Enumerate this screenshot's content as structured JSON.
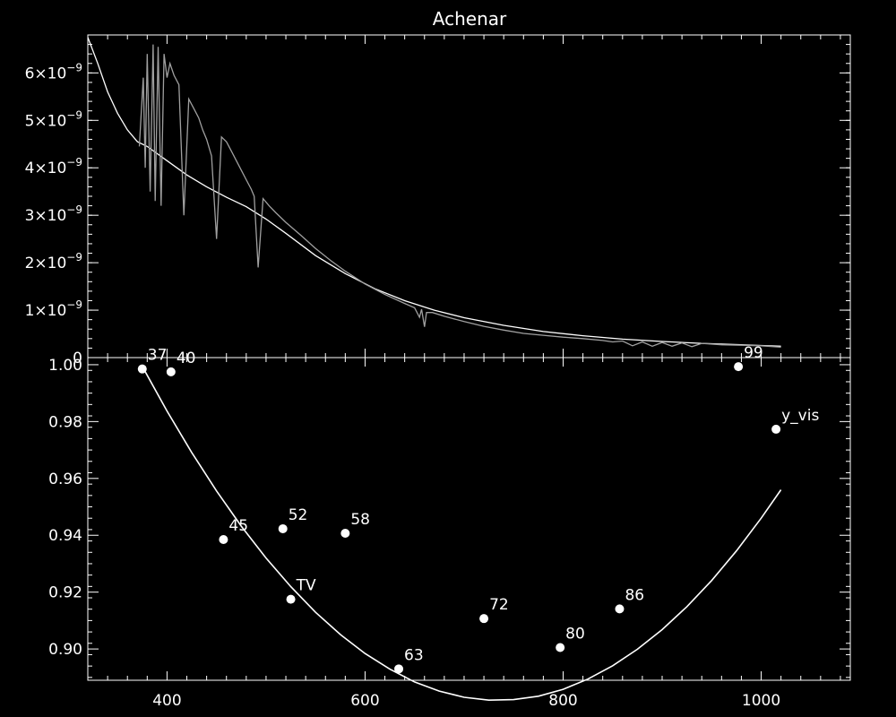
{
  "chart_data": [
    {
      "type": "line",
      "title": "Achenar",
      "xlabel": "",
      "ylabel": "",
      "xlim": [
        320,
        1090
      ],
      "ylim": [
        0,
        6.8e-09
      ],
      "y_tick_values": [
        0,
        1e-09,
        2e-09,
        3e-09,
        4e-09,
        5e-09,
        6e-09
      ],
      "y_tick_labels": [
        {
          "mant": "0",
          "exp": ""
        },
        {
          "mant": "1×10",
          "exp": "−9"
        },
        {
          "mant": "2×10",
          "exp": "−9"
        },
        {
          "mant": "3×10",
          "exp": "−9"
        },
        {
          "mant": "4×10",
          "exp": "−9"
        },
        {
          "mant": "5×10",
          "exp": "−9"
        },
        {
          "mant": "6×10",
          "exp": "−9"
        }
      ],
      "series": [
        {
          "color": "#ffffff",
          "x": [
            320,
            330,
            340,
            350,
            360,
            370,
            380,
            400,
            420,
            440,
            460,
            480,
            500,
            520,
            550,
            580,
            610,
            640,
            670,
            700,
            740,
            780,
            820,
            860,
            900,
            940,
            980,
            1000,
            1020
          ],
          "y": [
            6.75e-09,
            6.2e-09,
            5.6e-09,
            5.15e-09,
            4.8e-09,
            4.55e-09,
            4.45e-09,
            4.15e-09,
            3.85e-09,
            3.6e-09,
            3.38e-09,
            3.18e-09,
            2.92e-09,
            2.62e-09,
            2.15e-09,
            1.77e-09,
            1.45e-09,
            1.2e-09,
            1e-09,
            8.4e-10,
            6.8e-10,
            5.5e-10,
            4.6e-10,
            3.9e-10,
            3.4e-10,
            3e-10,
            2.7e-10,
            2.55e-10,
            2.4e-10
          ]
        },
        {
          "color": "#a0a0a0",
          "x": [
            372,
            376,
            378,
            380,
            383,
            386,
            388,
            391,
            394,
            397,
            400,
            403,
            407,
            412,
            417,
            422,
            427,
            432,
            436,
            440,
            445,
            450,
            455,
            460,
            465,
            470,
            475,
            480,
            485,
            488,
            492,
            497,
            503,
            510,
            520,
            535,
            550,
            565,
            580,
            600,
            620,
            640,
            650,
            655,
            657,
            660,
            662,
            668,
            680,
            700,
            720,
            740,
            760,
            780,
            800,
            820,
            840,
            850,
            860,
            870,
            880,
            890,
            900,
            910,
            920,
            930,
            940,
            960,
            980,
            1000,
            1020
          ],
          "y": [
            4.45e-09,
            5.9e-09,
            4e-09,
            6.4e-09,
            3.5e-09,
            6.6e-09,
            3.3e-09,
            6.55e-09,
            3.2e-09,
            6.4e-09,
            5.9e-09,
            6.2e-09,
            5.95e-09,
            5.75e-09,
            3e-09,
            5.45e-09,
            5.25e-09,
            5.05e-09,
            4.8e-09,
            4.6e-09,
            4.25e-09,
            2.5e-09,
            4.65e-09,
            4.55e-09,
            4.35e-09,
            4.15e-09,
            3.95e-09,
            3.75e-09,
            3.55e-09,
            3.4e-09,
            1.9e-09,
            3.35e-09,
            3.2e-09,
            3.05e-09,
            2.85e-09,
            2.58e-09,
            2.3e-09,
            2.05e-09,
            1.82e-09,
            1.55e-09,
            1.33e-09,
            1.14e-09,
            1.05e-09,
            8.5e-10,
            1.02e-09,
            6.5e-10,
            9.5e-10,
            9.5e-10,
            8.7e-10,
            7.6e-10,
            6.6e-10,
            5.8e-10,
            5.1e-10,
            4.7e-10,
            4.3e-10,
            4e-10,
            3.6e-10,
            3.3e-10,
            3.5e-10,
            2.5e-10,
            3.3e-10,
            2.4e-10,
            3.2e-10,
            2.4e-10,
            3.1e-10,
            2.3e-10,
            3e-10,
            2.7e-10,
            2.6e-10,
            2.5e-10,
            2.2e-10
          ]
        }
      ]
    },
    {
      "type": "scatter",
      "title": "",
      "xlabel": "",
      "ylabel": "",
      "xlim": [
        320,
        1090
      ],
      "ylim": [
        0.889,
        1.0025
      ],
      "x_tick_values": [
        400,
        600,
        800,
        1000
      ],
      "x_tick_labels": [
        "400",
        "600",
        "800",
        "1000"
      ],
      "y_tick_values": [
        0.9,
        0.92,
        0.94,
        0.96,
        0.98,
        1.0
      ],
      "y_tick_labels": [
        "0.90",
        "0.92",
        "0.94",
        "0.96",
        "0.98",
        "1.00"
      ],
      "points": [
        {
          "x": 375,
          "y": 0.9985,
          "label": "37"
        },
        {
          "x": 404,
          "y": 0.9975,
          "label": "40"
        },
        {
          "x": 457,
          "y": 0.9385,
          "label": "45"
        },
        {
          "x": 517,
          "y": 0.9423,
          "label": "52"
        },
        {
          "x": 580,
          "y": 0.9407,
          "label": "58"
        },
        {
          "x": 525,
          "y": 0.9175,
          "label": "TV"
        },
        {
          "x": 634,
          "y": 0.893,
          "label": "63"
        },
        {
          "x": 720,
          "y": 0.9107,
          "label": "72"
        },
        {
          "x": 797,
          "y": 0.9005,
          "label": "80"
        },
        {
          "x": 857,
          "y": 0.9141,
          "label": "86"
        },
        {
          "x": 977,
          "y": 0.9993,
          "label": "99"
        },
        {
          "x": 1015,
          "y": 0.9773,
          "label": "y_vis"
        }
      ],
      "fit_curve": {
        "x": [
          375,
          400,
          425,
          450,
          475,
          500,
          525,
          550,
          575,
          600,
          625,
          650,
          675,
          700,
          725,
          750,
          775,
          800,
          825,
          850,
          875,
          900,
          925,
          950,
          975,
          1000,
          1020
        ],
        "y": [
          0.9994,
          0.9837,
          0.9691,
          0.9556,
          0.9432,
          0.932,
          0.9219,
          0.9129,
          0.9051,
          0.8984,
          0.8929,
          0.8884,
          0.8852,
          0.883,
          0.882,
          0.8822,
          0.8834,
          0.8858,
          0.8894,
          0.8941,
          0.8999,
          0.9068,
          0.9149,
          0.9241,
          0.9345,
          0.946,
          0.956
        ]
      }
    }
  ]
}
